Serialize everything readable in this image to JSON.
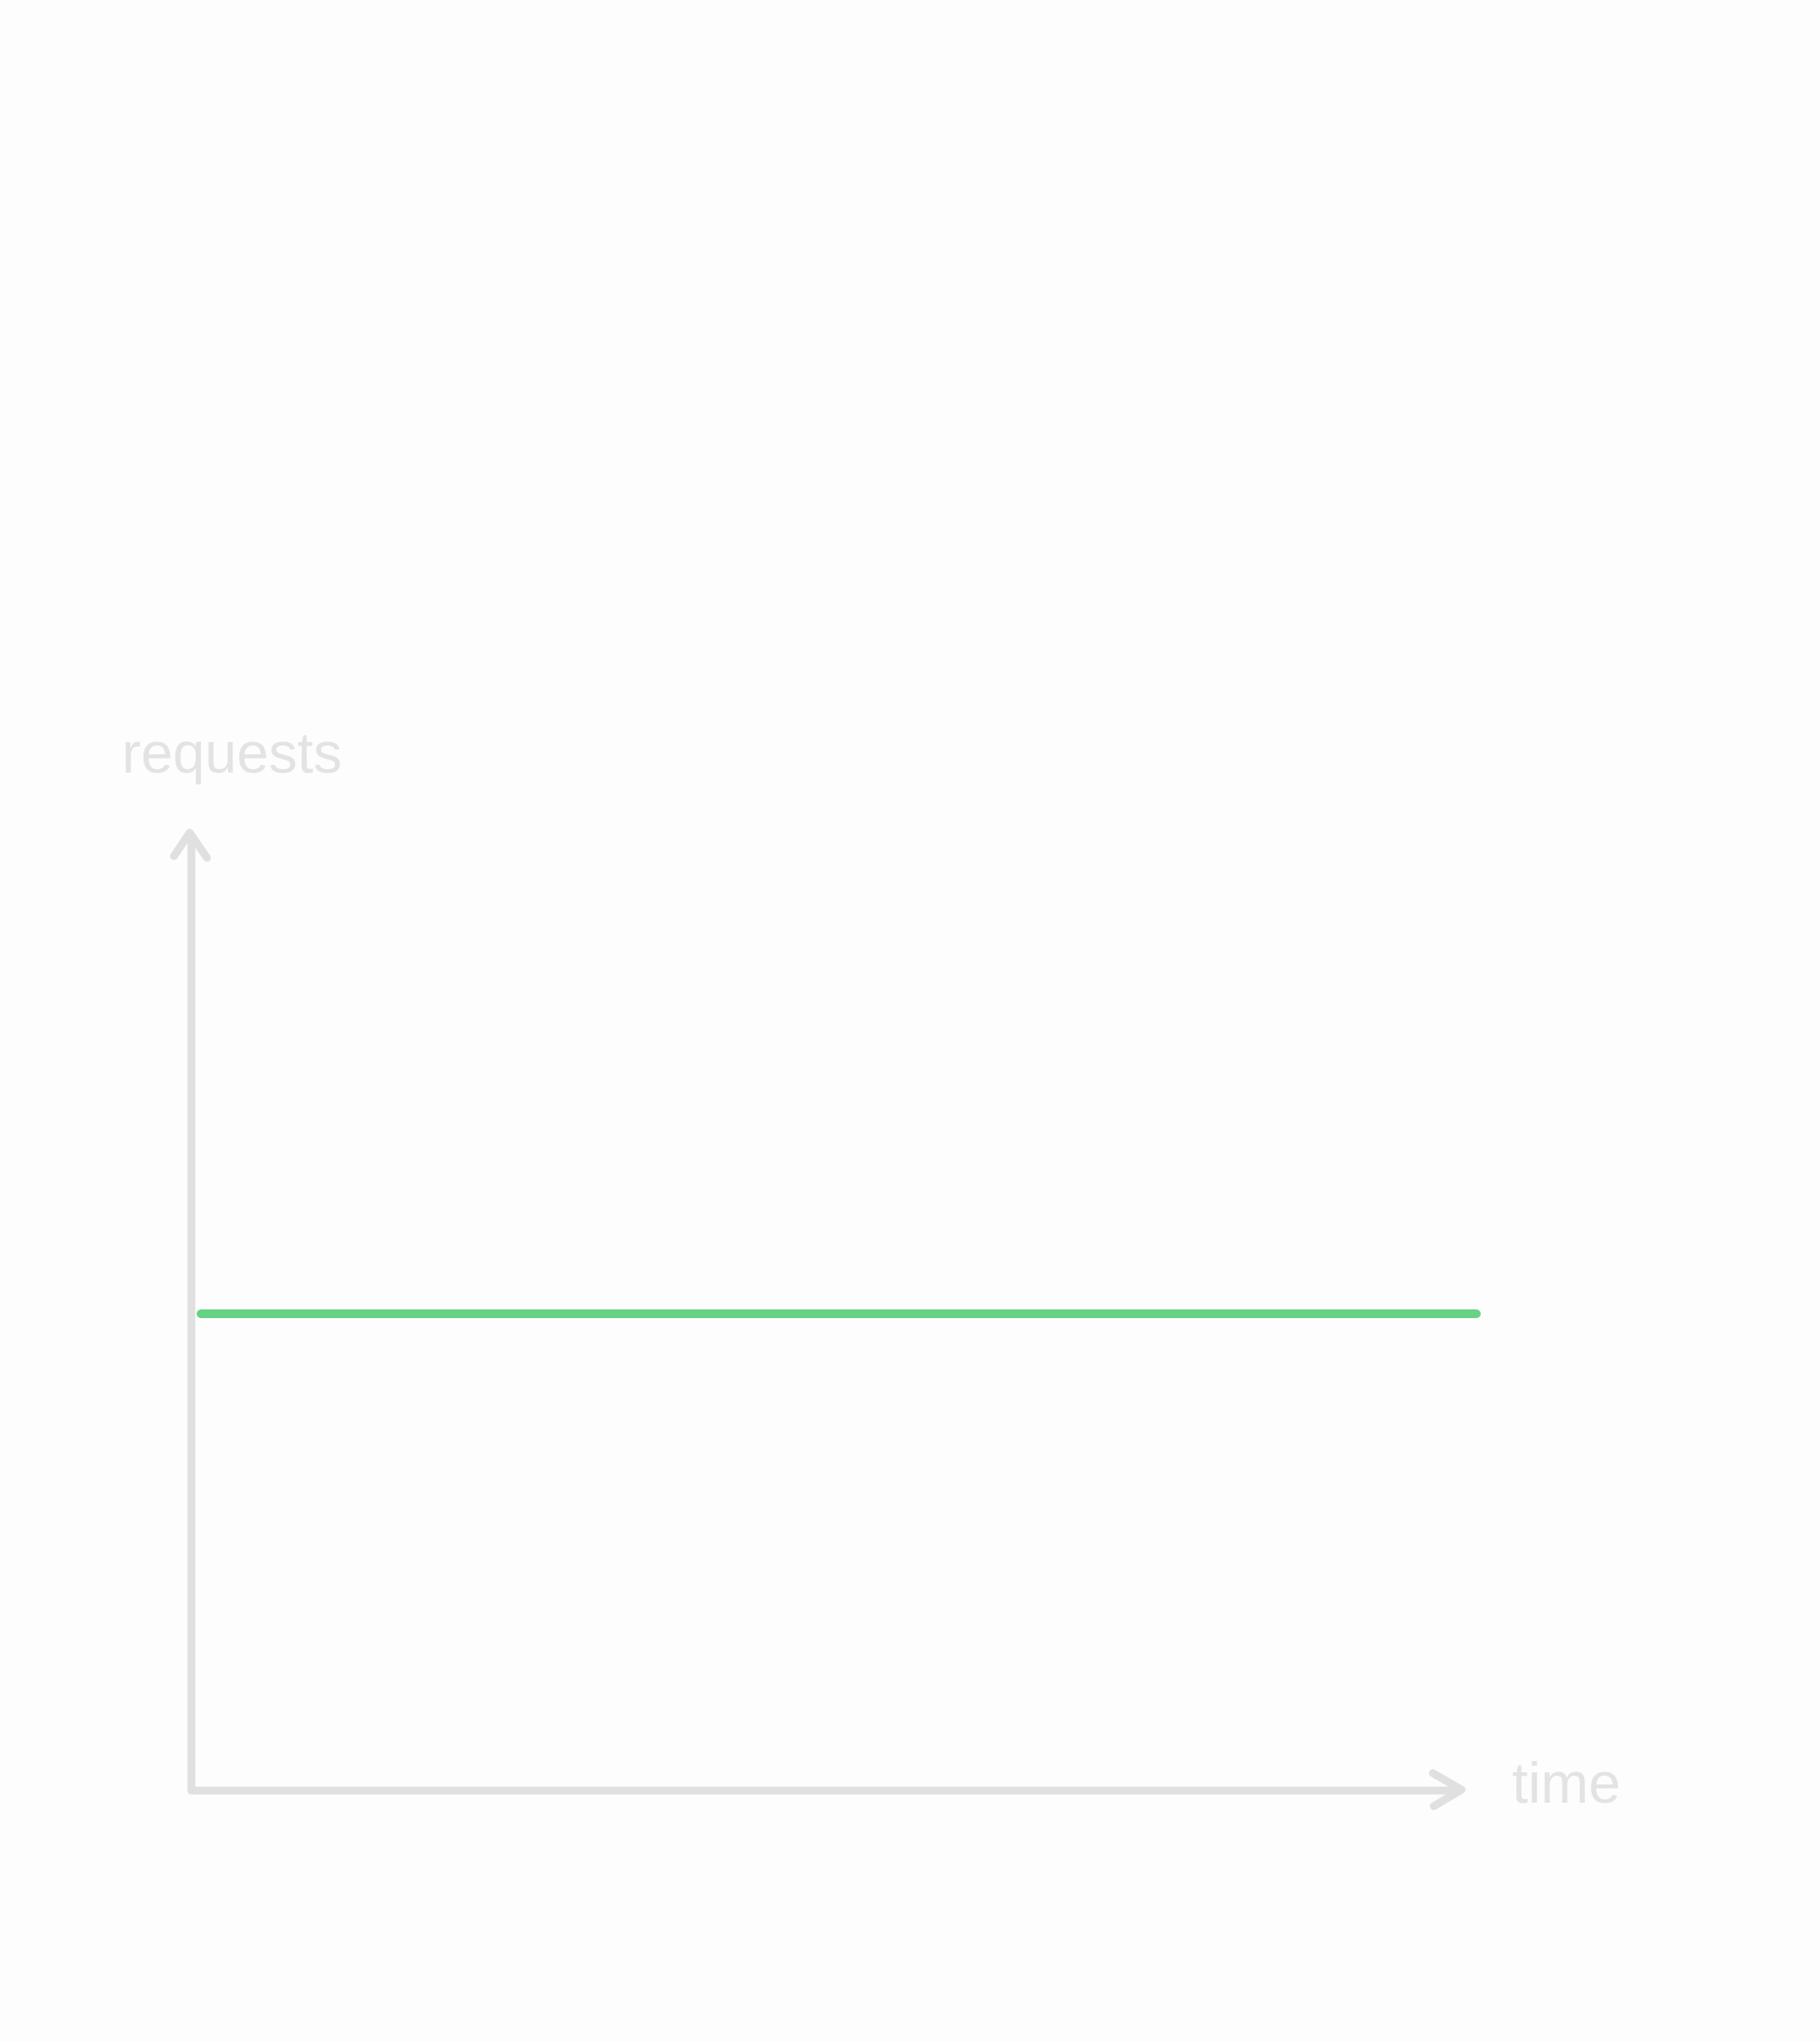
{
  "chart_data": {
    "type": "line",
    "title": "",
    "xlabel": "time",
    "ylabel": "requests",
    "x": [
      0,
      1
    ],
    "series": [
      {
        "values": [
          0.5,
          0.5
        ]
      }
    ],
    "xlim": [
      0,
      1
    ],
    "ylim": [
      0,
      1
    ],
    "grid": false,
    "ticks": false,
    "colors": {
      "series": "#66d283",
      "axis": "#e0e0e0",
      "label": "#e3e3e3",
      "background": "#fdfdfd"
    }
  }
}
